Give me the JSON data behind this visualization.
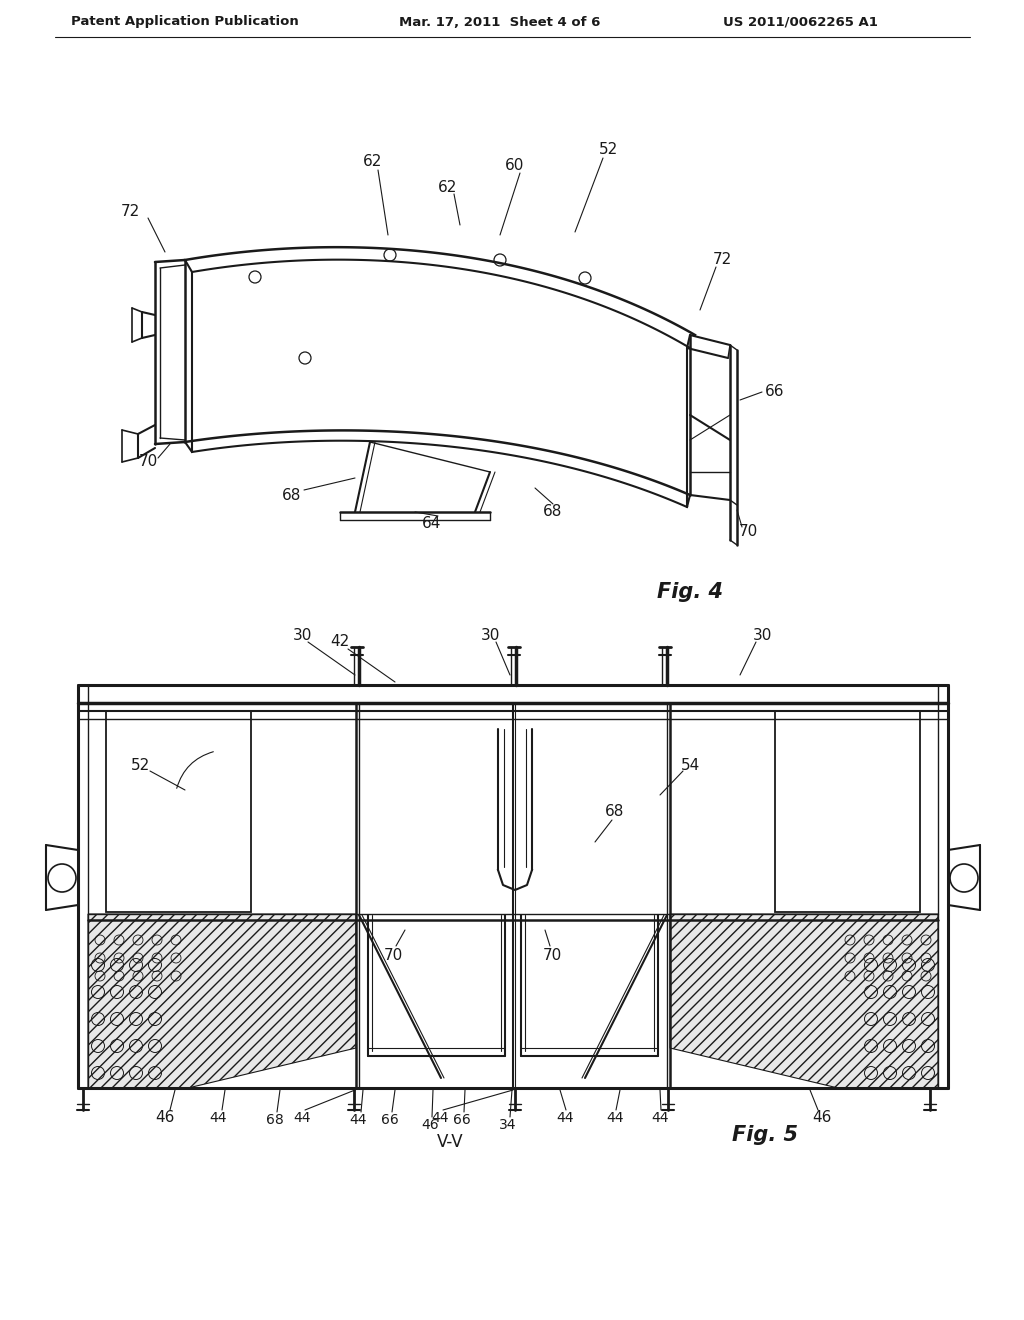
{
  "background_color": "#ffffff",
  "header_left": "Patent Application Publication",
  "header_mid": "Mar. 17, 2011  Sheet 4 of 6",
  "header_right": "US 2011/0062265 A1",
  "fig4_label": "Fig. 4",
  "fig5_label": "Fig. 5",
  "fig5_sublabel": "V-V",
  "line_color": "#1a1a1a",
  "text_color": "#1a1a1a",
  "label_fontsize": 11,
  "header_fontsize": 10,
  "fig_label_fontsize": 15
}
